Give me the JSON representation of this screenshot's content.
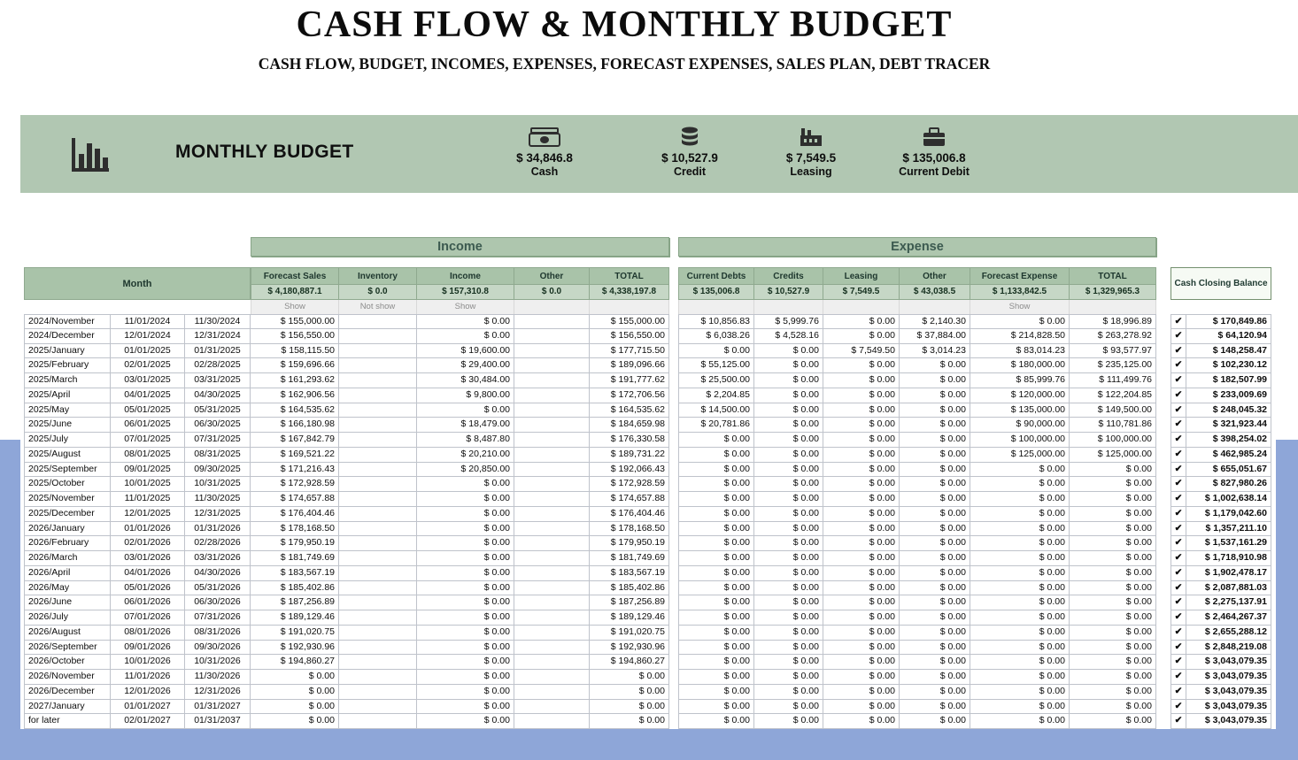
{
  "page": {
    "title": "CASH FLOW & MONTHLY BUDGET",
    "subtitle": "CASH FLOW, BUDGET, INCOMES, EXPENSES, FORECAST EXPENSES, SALES PLAN, DEBT TRACER"
  },
  "banner": {
    "title": "MONTHLY BUDGET",
    "icon": "bar-chart-icon",
    "stats": [
      {
        "icon": "cash-icon",
        "value": "$ 34,846.8",
        "label": "Cash"
      },
      {
        "icon": "coins-icon",
        "value": "$ 10,527.9",
        "label": "Credit"
      },
      {
        "icon": "factory-icon",
        "value": "$ 7,549.5",
        "label": "Leasing"
      },
      {
        "icon": "briefcase-icon",
        "value": "$ 135,006.8",
        "label": "Current Debit"
      }
    ]
  },
  "table": {
    "month_header": "Month",
    "balance_header": "Cash Closing Balance",
    "sections": {
      "income": "Income",
      "expense": "Expense"
    },
    "income_columns": [
      "Forecast Sales",
      "Inventory",
      "Income",
      "Other",
      "TOTAL"
    ],
    "expense_columns": [
      "Current Debts",
      "Credits",
      "Leasing",
      "Other",
      "Forecast Expense",
      "TOTAL"
    ],
    "income_totals": [
      "$ 4,180,887.1",
      "$ 0.0",
      "$ 157,310.8",
      "$ 0.0",
      "$ 4,338,197.8"
    ],
    "expense_totals": [
      "$ 135,006.8",
      "$ 10,527.9",
      "$ 7,549.5",
      "$ 43,038.5",
      "$ 1,133,842.5",
      "$ 1,329,965.3"
    ],
    "income_toggles": [
      "Show",
      "Not show",
      "Show",
      "",
      ""
    ],
    "expense_toggles": [
      "",
      "",
      "",
      "",
      "Show",
      ""
    ],
    "rows": [
      {
        "month": "2024/November",
        "start": "11/01/2024",
        "end": "11/30/2024",
        "income": [
          "$ 155,000.00",
          "",
          "$ 0.00",
          "",
          "$ 155,000.00"
        ],
        "expense": [
          "$ 10,856.83",
          "$ 5,999.76",
          "$ 0.00",
          "$ 2,140.30",
          "$ 0.00",
          "$ 18,996.89"
        ],
        "check": true,
        "balance": "$ 170,849.86"
      },
      {
        "month": "2024/December",
        "start": "12/01/2024",
        "end": "12/31/2024",
        "income": [
          "$ 156,550.00",
          "",
          "$ 0.00",
          "",
          "$ 156,550.00"
        ],
        "expense": [
          "$ 6,038.26",
          "$ 4,528.16",
          "$ 0.00",
          "$ 37,884.00",
          "$ 214,828.50",
          "$ 263,278.92"
        ],
        "check": true,
        "balance": "$ 64,120.94"
      },
      {
        "month": "2025/January",
        "start": "01/01/2025",
        "end": "01/31/2025",
        "income": [
          "$ 158,115.50",
          "",
          "$ 19,600.00",
          "",
          "$ 177,715.50"
        ],
        "expense": [
          "$ 0.00",
          "$ 0.00",
          "$ 7,549.50",
          "$ 3,014.23",
          "$ 83,014.23",
          "$ 93,577.97"
        ],
        "check": true,
        "balance": "$ 148,258.47"
      },
      {
        "month": "2025/February",
        "start": "02/01/2025",
        "end": "02/28/2025",
        "income": [
          "$ 159,696.66",
          "",
          "$ 29,400.00",
          "",
          "$ 189,096.66"
        ],
        "expense": [
          "$ 55,125.00",
          "$ 0.00",
          "$ 0.00",
          "$ 0.00",
          "$ 180,000.00",
          "$ 235,125.00"
        ],
        "check": true,
        "balance": "$ 102,230.12"
      },
      {
        "month": "2025/March",
        "start": "03/01/2025",
        "end": "03/31/2025",
        "income": [
          "$ 161,293.62",
          "",
          "$ 30,484.00",
          "",
          "$ 191,777.62"
        ],
        "expense": [
          "$ 25,500.00",
          "$ 0.00",
          "$ 0.00",
          "$ 0.00",
          "$ 85,999.76",
          "$ 111,499.76"
        ],
        "check": true,
        "balance": "$ 182,507.99"
      },
      {
        "month": "2025/April",
        "start": "04/01/2025",
        "end": "04/30/2025",
        "income": [
          "$ 162,906.56",
          "",
          "$ 9,800.00",
          "",
          "$ 172,706.56"
        ],
        "expense": [
          "$ 2,204.85",
          "$ 0.00",
          "$ 0.00",
          "$ 0.00",
          "$ 120,000.00",
          "$ 122,204.85"
        ],
        "check": true,
        "balance": "$ 233,009.69"
      },
      {
        "month": "2025/May",
        "start": "05/01/2025",
        "end": "05/31/2025",
        "income": [
          "$ 164,535.62",
          "",
          "$ 0.00",
          "",
          "$ 164,535.62"
        ],
        "expense": [
          "$ 14,500.00",
          "$ 0.00",
          "$ 0.00",
          "$ 0.00",
          "$ 135,000.00",
          "$ 149,500.00"
        ],
        "check": true,
        "balance": "$ 248,045.32"
      },
      {
        "month": "2025/June",
        "start": "06/01/2025",
        "end": "06/30/2025",
        "income": [
          "$ 166,180.98",
          "",
          "$ 18,479.00",
          "",
          "$ 184,659.98"
        ],
        "expense": [
          "$ 20,781.86",
          "$ 0.00",
          "$ 0.00",
          "$ 0.00",
          "$ 90,000.00",
          "$ 110,781.86"
        ],
        "check": true,
        "balance": "$ 321,923.44"
      },
      {
        "month": "2025/July",
        "start": "07/01/2025",
        "end": "07/31/2025",
        "income": [
          "$ 167,842.79",
          "",
          "$ 8,487.80",
          "",
          "$ 176,330.58"
        ],
        "expense": [
          "$ 0.00",
          "$ 0.00",
          "$ 0.00",
          "$ 0.00",
          "$ 100,000.00",
          "$ 100,000.00"
        ],
        "check": true,
        "balance": "$ 398,254.02"
      },
      {
        "month": "2025/August",
        "start": "08/01/2025",
        "end": "08/31/2025",
        "income": [
          "$ 169,521.22",
          "",
          "$ 20,210.00",
          "",
          "$ 189,731.22"
        ],
        "expense": [
          "$ 0.00",
          "$ 0.00",
          "$ 0.00",
          "$ 0.00",
          "$ 125,000.00",
          "$ 125,000.00"
        ],
        "check": true,
        "balance": "$ 462,985.24"
      },
      {
        "month": "2025/September",
        "start": "09/01/2025",
        "end": "09/30/2025",
        "income": [
          "$ 171,216.43",
          "",
          "$ 20,850.00",
          "",
          "$ 192,066.43"
        ],
        "expense": [
          "$ 0.00",
          "$ 0.00",
          "$ 0.00",
          "$ 0.00",
          "$ 0.00",
          "$ 0.00"
        ],
        "check": true,
        "balance": "$ 655,051.67"
      },
      {
        "month": "2025/October",
        "start": "10/01/2025",
        "end": "10/31/2025",
        "income": [
          "$ 172,928.59",
          "",
          "$ 0.00",
          "",
          "$ 172,928.59"
        ],
        "expense": [
          "$ 0.00",
          "$ 0.00",
          "$ 0.00",
          "$ 0.00",
          "$ 0.00",
          "$ 0.00"
        ],
        "check": true,
        "balance": "$ 827,980.26"
      },
      {
        "month": "2025/November",
        "start": "11/01/2025",
        "end": "11/30/2025",
        "income": [
          "$ 174,657.88",
          "",
          "$ 0.00",
          "",
          "$ 174,657.88"
        ],
        "expense": [
          "$ 0.00",
          "$ 0.00",
          "$ 0.00",
          "$ 0.00",
          "$ 0.00",
          "$ 0.00"
        ],
        "check": true,
        "balance": "$ 1,002,638.14"
      },
      {
        "month": "2025/December",
        "start": "12/01/2025",
        "end": "12/31/2025",
        "income": [
          "$ 176,404.46",
          "",
          "$ 0.00",
          "",
          "$ 176,404.46"
        ],
        "expense": [
          "$ 0.00",
          "$ 0.00",
          "$ 0.00",
          "$ 0.00",
          "$ 0.00",
          "$ 0.00"
        ],
        "check": true,
        "balance": "$ 1,179,042.60"
      },
      {
        "month": "2026/January",
        "start": "01/01/2026",
        "end": "01/31/2026",
        "income": [
          "$ 178,168.50",
          "",
          "$ 0.00",
          "",
          "$ 178,168.50"
        ],
        "expense": [
          "$ 0.00",
          "$ 0.00",
          "$ 0.00",
          "$ 0.00",
          "$ 0.00",
          "$ 0.00"
        ],
        "check": true,
        "balance": "$ 1,357,211.10"
      },
      {
        "month": "2026/February",
        "start": "02/01/2026",
        "end": "02/28/2026",
        "income": [
          "$ 179,950.19",
          "",
          "$ 0.00",
          "",
          "$ 179,950.19"
        ],
        "expense": [
          "$ 0.00",
          "$ 0.00",
          "$ 0.00",
          "$ 0.00",
          "$ 0.00",
          "$ 0.00"
        ],
        "check": true,
        "balance": "$ 1,537,161.29"
      },
      {
        "month": "2026/March",
        "start": "03/01/2026",
        "end": "03/31/2026",
        "income": [
          "$ 181,749.69",
          "",
          "$ 0.00",
          "",
          "$ 181,749.69"
        ],
        "expense": [
          "$ 0.00",
          "$ 0.00",
          "$ 0.00",
          "$ 0.00",
          "$ 0.00",
          "$ 0.00"
        ],
        "check": true,
        "balance": "$ 1,718,910.98"
      },
      {
        "month": "2026/April",
        "start": "04/01/2026",
        "end": "04/30/2026",
        "income": [
          "$ 183,567.19",
          "",
          "$ 0.00",
          "",
          "$ 183,567.19"
        ],
        "expense": [
          "$ 0.00",
          "$ 0.00",
          "$ 0.00",
          "$ 0.00",
          "$ 0.00",
          "$ 0.00"
        ],
        "check": true,
        "balance": "$ 1,902,478.17"
      },
      {
        "month": "2026/May",
        "start": "05/01/2026",
        "end": "05/31/2026",
        "income": [
          "$ 185,402.86",
          "",
          "$ 0.00",
          "",
          "$ 185,402.86"
        ],
        "expense": [
          "$ 0.00",
          "$ 0.00",
          "$ 0.00",
          "$ 0.00",
          "$ 0.00",
          "$ 0.00"
        ],
        "check": true,
        "balance": "$ 2,087,881.03"
      },
      {
        "month": "2026/June",
        "start": "06/01/2026",
        "end": "06/30/2026",
        "income": [
          "$ 187,256.89",
          "",
          "$ 0.00",
          "",
          "$ 187,256.89"
        ],
        "expense": [
          "$ 0.00",
          "$ 0.00",
          "$ 0.00",
          "$ 0.00",
          "$ 0.00",
          "$ 0.00"
        ],
        "check": true,
        "balance": "$ 2,275,137.91"
      },
      {
        "month": "2026/July",
        "start": "07/01/2026",
        "end": "07/31/2026",
        "income": [
          "$ 189,129.46",
          "",
          "$ 0.00",
          "",
          "$ 189,129.46"
        ],
        "expense": [
          "$ 0.00",
          "$ 0.00",
          "$ 0.00",
          "$ 0.00",
          "$ 0.00",
          "$ 0.00"
        ],
        "check": true,
        "balance": "$ 2,464,267.37"
      },
      {
        "month": "2026/August",
        "start": "08/01/2026",
        "end": "08/31/2026",
        "income": [
          "$ 191,020.75",
          "",
          "$ 0.00",
          "",
          "$ 191,020.75"
        ],
        "expense": [
          "$ 0.00",
          "$ 0.00",
          "$ 0.00",
          "$ 0.00",
          "$ 0.00",
          "$ 0.00"
        ],
        "check": true,
        "balance": "$ 2,655,288.12"
      },
      {
        "month": "2026/September",
        "start": "09/01/2026",
        "end": "09/30/2026",
        "income": [
          "$ 192,930.96",
          "",
          "$ 0.00",
          "",
          "$ 192,930.96"
        ],
        "expense": [
          "$ 0.00",
          "$ 0.00",
          "$ 0.00",
          "$ 0.00",
          "$ 0.00",
          "$ 0.00"
        ],
        "check": true,
        "balance": "$ 2,848,219.08"
      },
      {
        "month": "2026/October",
        "start": "10/01/2026",
        "end": "10/31/2026",
        "income": [
          "$ 194,860.27",
          "",
          "$ 0.00",
          "",
          "$ 194,860.27"
        ],
        "expense": [
          "$ 0.00",
          "$ 0.00",
          "$ 0.00",
          "$ 0.00",
          "$ 0.00",
          "$ 0.00"
        ],
        "check": true,
        "balance": "$ 3,043,079.35"
      },
      {
        "month": "2026/November",
        "start": "11/01/2026",
        "end": "11/30/2026",
        "income": [
          "$ 0.00",
          "",
          "$ 0.00",
          "",
          "$ 0.00"
        ],
        "expense": [
          "$ 0.00",
          "$ 0.00",
          "$ 0.00",
          "$ 0.00",
          "$ 0.00",
          "$ 0.00"
        ],
        "check": true,
        "balance": "$ 3,043,079.35"
      },
      {
        "month": "2026/December",
        "start": "12/01/2026",
        "end": "12/31/2026",
        "income": [
          "$ 0.00",
          "",
          "$ 0.00",
          "",
          "$ 0.00"
        ],
        "expense": [
          "$ 0.00",
          "$ 0.00",
          "$ 0.00",
          "$ 0.00",
          "$ 0.00",
          "$ 0.00"
        ],
        "check": true,
        "balance": "$ 3,043,079.35"
      },
      {
        "month": "2027/January",
        "start": "01/01/2027",
        "end": "01/31/2027",
        "income": [
          "$ 0.00",
          "",
          "$ 0.00",
          "",
          "$ 0.00"
        ],
        "expense": [
          "$ 0.00",
          "$ 0.00",
          "$ 0.00",
          "$ 0.00",
          "$ 0.00",
          "$ 0.00"
        ],
        "check": true,
        "balance": "$ 3,043,079.35"
      },
      {
        "month": "for later",
        "start": "02/01/2027",
        "end": "01/31/2037",
        "income": [
          "$ 0.00",
          "",
          "$ 0.00",
          "",
          "$ 0.00"
        ],
        "expense": [
          "$ 0.00",
          "$ 0.00",
          "$ 0.00",
          "$ 0.00",
          "$ 0.00",
          "$ 0.00"
        ],
        "check": true,
        "balance": "$ 3,043,079.35"
      }
    ]
  },
  "colors": {
    "banner_green": "#b1c7b2",
    "header_green": "#a9c3a9",
    "totals_green": "#c6d7c6",
    "section_text": "#3c5a50",
    "check_green": "#3f9142",
    "background_blue": "#8ea6d8"
  }
}
